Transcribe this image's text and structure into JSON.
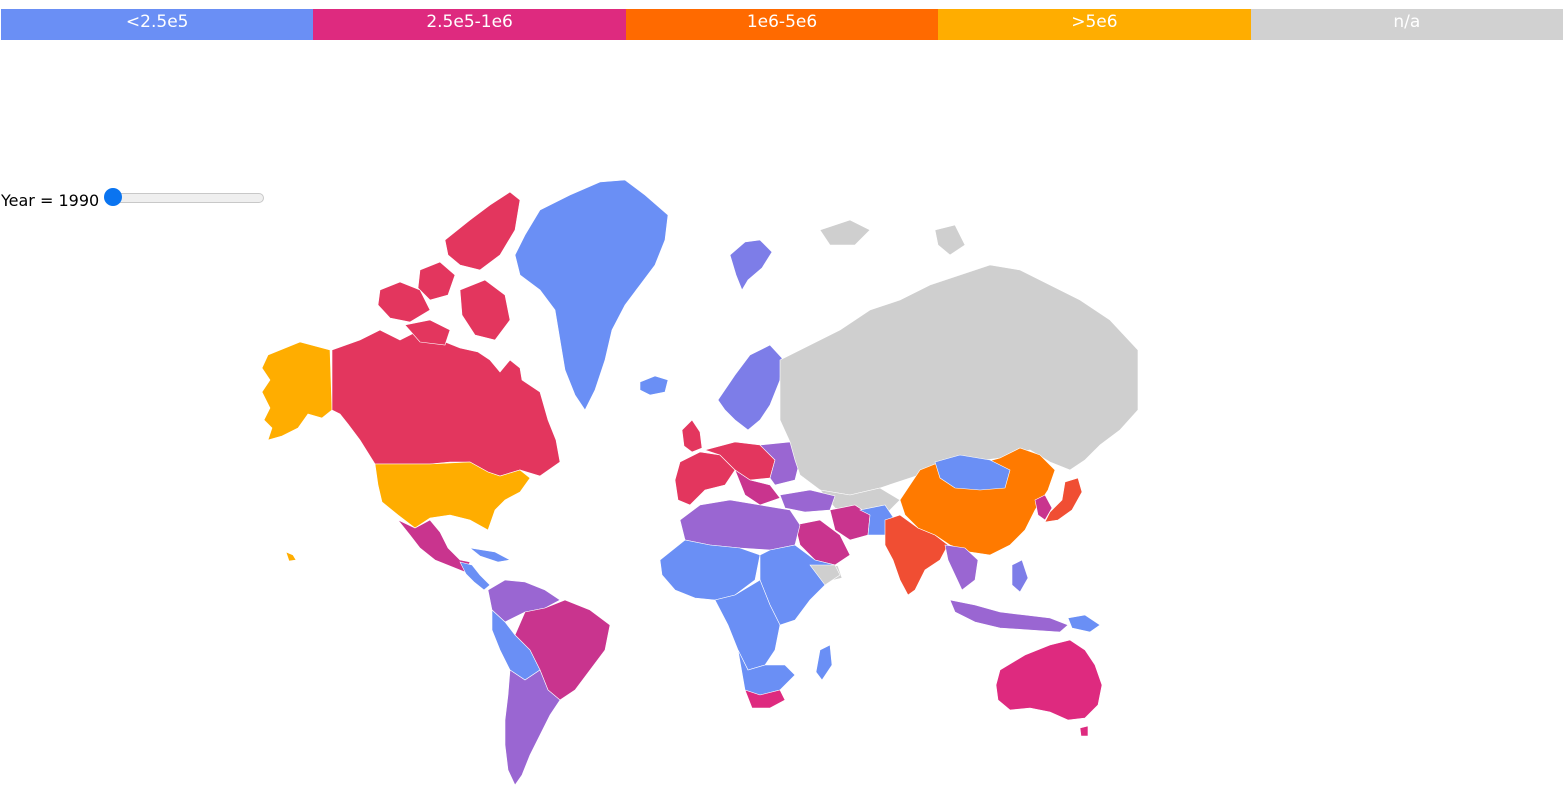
{
  "legend": {
    "items": [
      {
        "label": "<2.5e5",
        "color": "#6a8ff5"
      },
      {
        "label": "2.5e5-1e6",
        "color": "#de2a7f"
      },
      {
        "label": "1e6-5e6",
        "color": "#ff6a00"
      },
      {
        "label": ">5e6",
        "color": "#ffad00"
      },
      {
        "label": "n/a",
        "color": "#d1d1d1"
      }
    ]
  },
  "slider": {
    "label_prefix": "Year = ",
    "year": "1990",
    "position": 0
  },
  "map": {
    "fills": {
      "blue": "#6a8ff5",
      "periwinkle": "#7d7de8",
      "purple": "#9a66d2",
      "magenta": "#c9348e",
      "pink": "#de2a7f",
      "crimson": "#e3365e",
      "red_orange": "#f04e33",
      "orange": "#ff7a00",
      "gold": "#ffad00",
      "grey": "#cfcfcf"
    }
  }
}
